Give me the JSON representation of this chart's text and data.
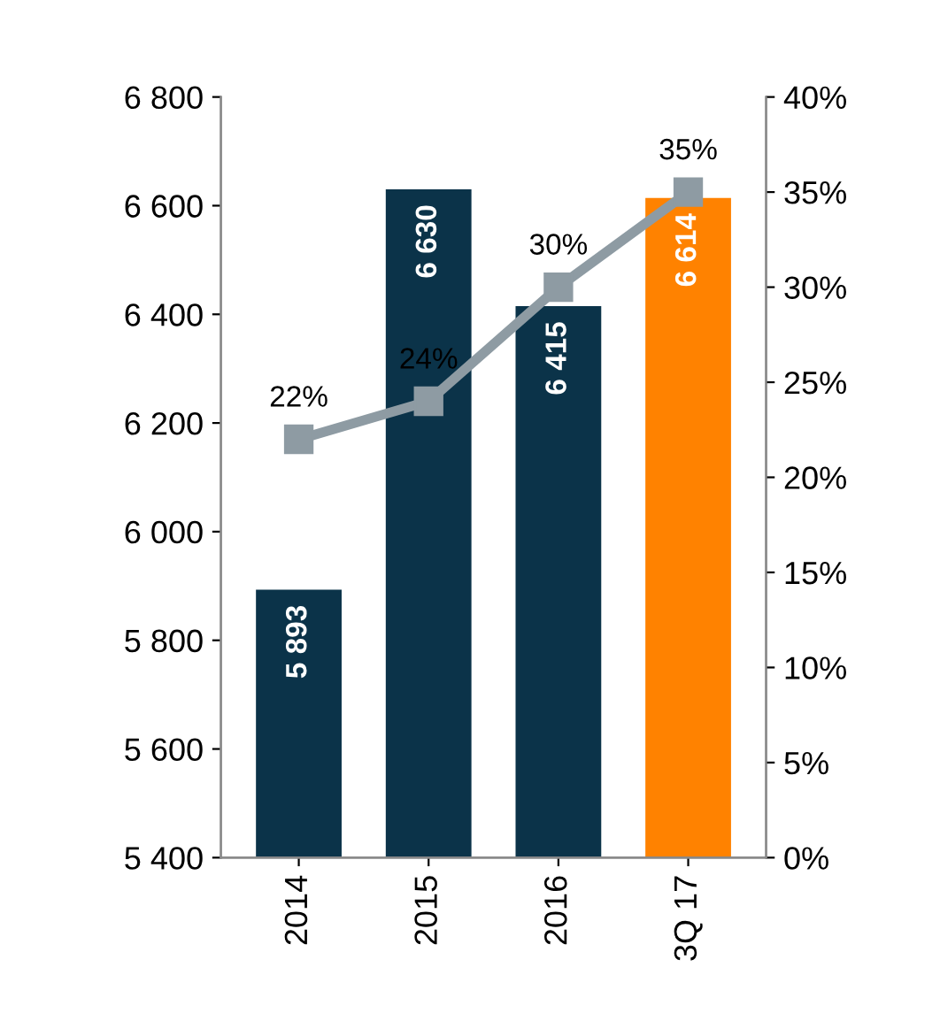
{
  "chart_data": {
    "type": "bar",
    "categories": [
      "2014",
      "2015",
      "2016",
      "3Q 17"
    ],
    "series": [
      {
        "colors": [
          "#0b3349",
          "#0b3349",
          "#0b3349",
          "#ff8200"
        ],
        "values": [
          5893,
          6630,
          6415,
          6614
        ],
        "value_labels": [
          "5 893",
          "6 630",
          "6 415",
          "6 614"
        ]
      },
      {
        "type": "line",
        "axis": "y2",
        "color": "#8e9ba3",
        "marker": "square",
        "values": [
          22,
          24,
          30,
          35
        ],
        "value_labels": [
          "22%",
          "24%",
          "30%",
          "35%"
        ]
      }
    ],
    "ylim": [
      5400,
      6800
    ],
    "yticks": [
      {
        "value": 5400,
        "label": "5 400"
      },
      {
        "value": 5600,
        "label": "5 600"
      },
      {
        "value": 5800,
        "label": "5 800"
      },
      {
        "value": 6000,
        "label": "6 000"
      },
      {
        "value": 6200,
        "label": "6 200"
      },
      {
        "value": 6400,
        "label": "6 400"
      },
      {
        "value": 6600,
        "label": "6 600"
      },
      {
        "value": 6800,
        "label": "6 800"
      }
    ],
    "y2lim": [
      0,
      40
    ],
    "y2ticks": [
      {
        "value": 0,
        "label": "0%"
      },
      {
        "value": 5,
        "label": "5%"
      },
      {
        "value": 10,
        "label": "10%"
      },
      {
        "value": 15,
        "label": "15%"
      },
      {
        "value": 20,
        "label": "20%"
      },
      {
        "value": 25,
        "label": "25%"
      },
      {
        "value": 30,
        "label": "30%"
      },
      {
        "value": 35,
        "label": "35%"
      },
      {
        "value": 40,
        "label": "40%"
      }
    ],
    "grid": false,
    "legend": false
  }
}
